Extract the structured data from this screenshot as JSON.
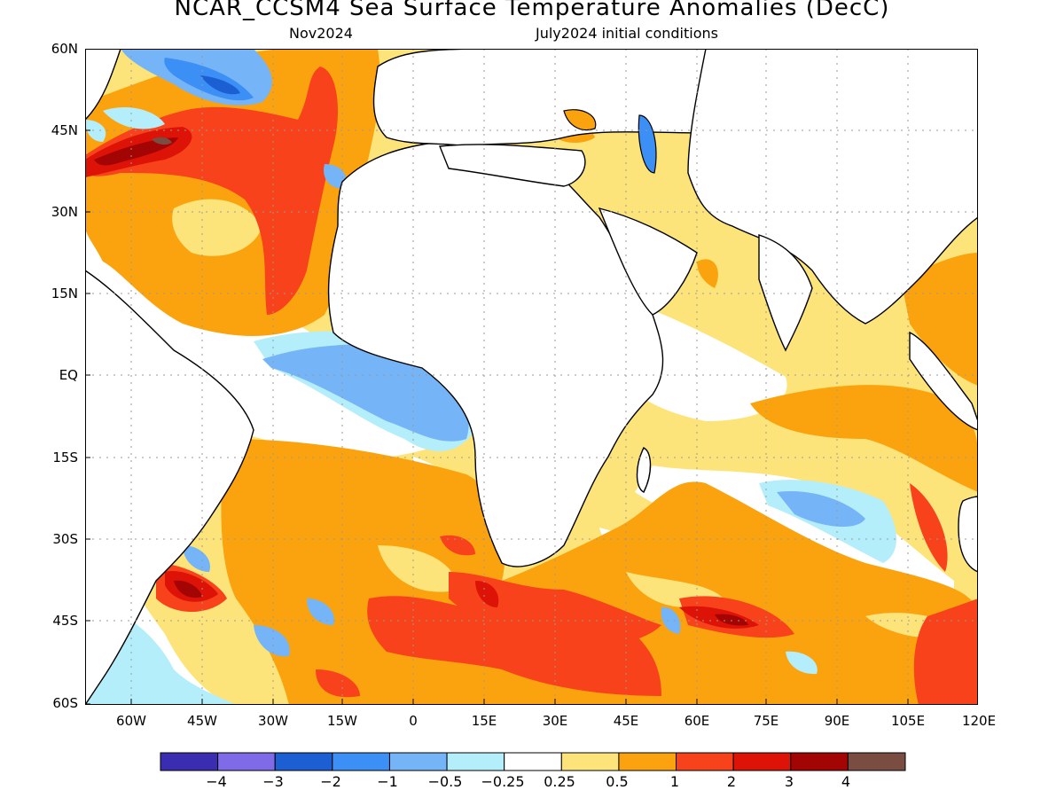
{
  "title": "NCAR_CCSM4 Sea Surface Temperature Anomalies (DecC)",
  "subtitle_left": "Nov2024",
  "subtitle_right": "July2024 initial conditions",
  "lat_labels": [
    "60N",
    "45N",
    "30N",
    "15N",
    "EQ",
    "15S",
    "30S",
    "45S",
    "60S"
  ],
  "lon_labels": [
    "60W",
    "45W",
    "30W",
    "15W",
    "0",
    "15E",
    "30E",
    "45E",
    "60E",
    "75E",
    "90E",
    "105E",
    "120E"
  ],
  "colorbar": {
    "colors": [
      "#3a2db2",
      "#7f6ae8",
      "#1c5fd3",
      "#3c8ff5",
      "#75b4f7",
      "#b4eefa",
      "#ffffff",
      "#fde47a",
      "#fba30e",
      "#f8421b",
      "#dc1306",
      "#a30404",
      "#7a4d42"
    ],
    "labels": [
      "−4",
      "−3",
      "−2",
      "−1",
      "−0.5",
      "−0.25",
      "0.25",
      "0.5",
      "1",
      "2",
      "3",
      "4"
    ]
  }
}
